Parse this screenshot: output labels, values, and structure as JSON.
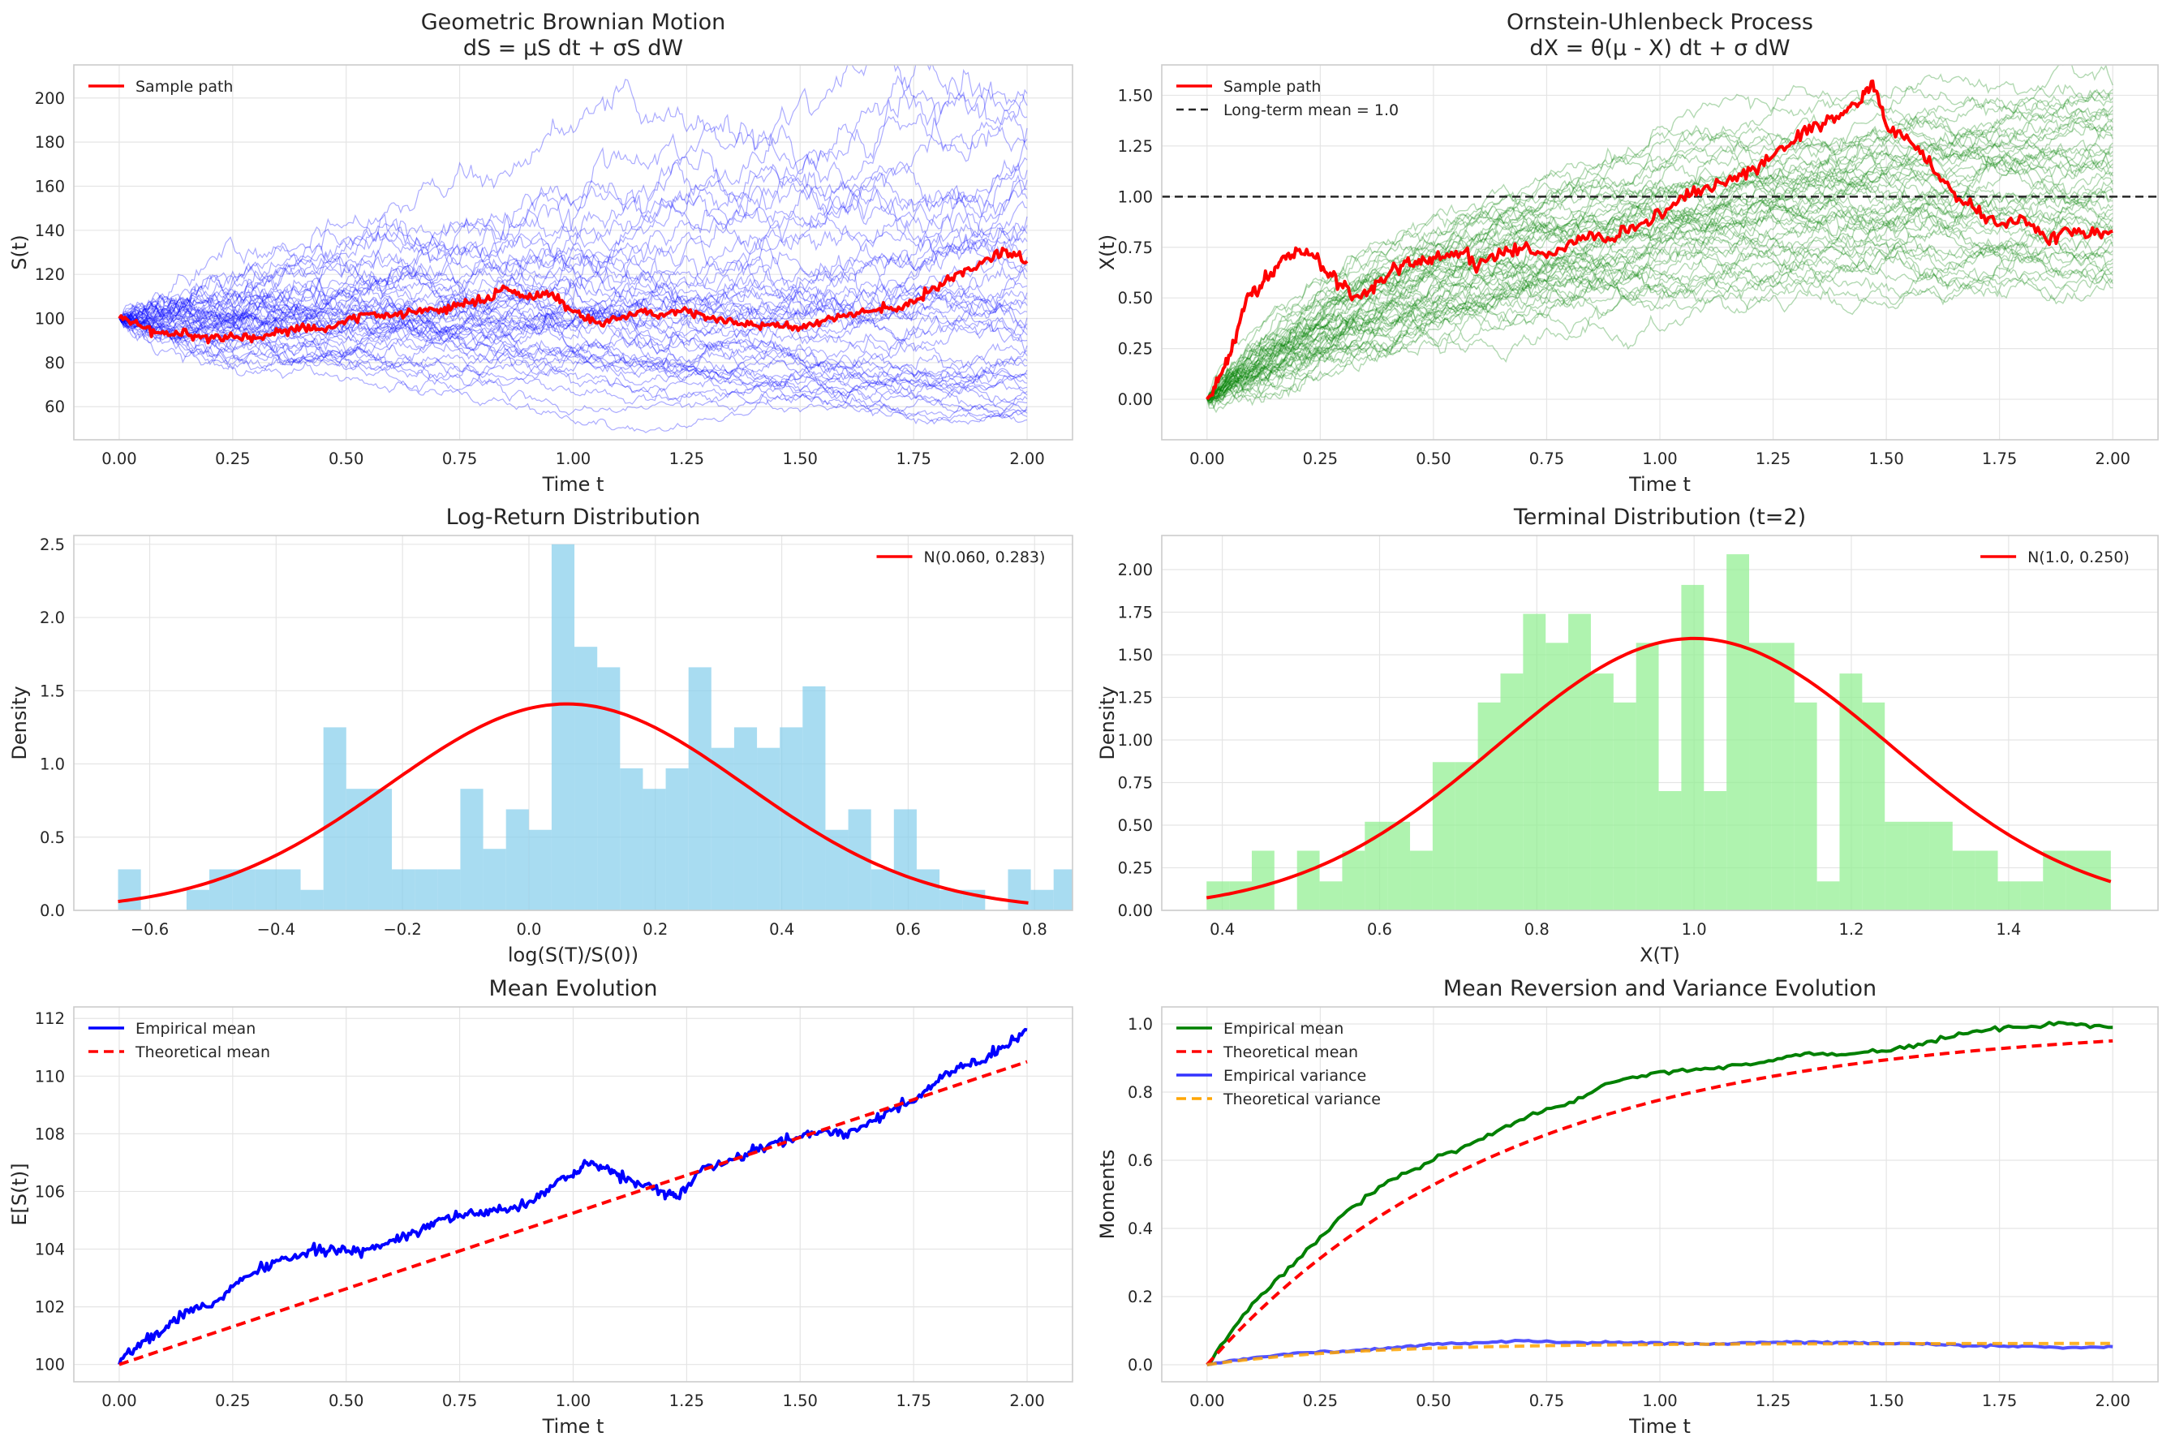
{
  "colors": {
    "gbm_paths": "#0000ff",
    "gbm_sample": "#ff0000",
    "ou_paths": "#008000",
    "ou_sample": "#ff0000",
    "mean_line": "#262626",
    "hist_log": "#87ceeb",
    "hist_terminal": "#90ee90",
    "pdf": "#ff0000",
    "emp_mean_gbm": "#0000ff",
    "theo_mean_gbm": "#ff0000",
    "emp_mean_ou": "#008000",
    "theo_mean_ou": "#ff0000",
    "emp_var_ou": "#3333ff",
    "theo_var_ou": "#ffa500",
    "grid": "#e5e5e5",
    "frame": "#cccccc"
  },
  "chart_data": [
    {
      "id": "gbm",
      "type": "line",
      "title": "Geometric Brownian Motion",
      "subtitle": "dS = μS dt + σS dW",
      "xlabel": "Time t",
      "ylabel": "S(t)",
      "xlim": [
        -0.1,
        2.1
      ],
      "ylim": [
        45,
        215
      ],
      "xticks": [
        "0.00",
        "0.25",
        "0.50",
        "0.75",
        "1.00",
        "1.25",
        "1.50",
        "1.75",
        "2.00"
      ],
      "yticks": [
        "60",
        "80",
        "100",
        "120",
        "140",
        "160",
        "180",
        "200"
      ],
      "grid": true,
      "legend": {
        "position": "top-left",
        "entries": [
          "Sample path"
        ]
      },
      "ensemble": {
        "count": 50,
        "t_end": 2.0,
        "start": 100,
        "final_low": 54,
        "final_high": 202,
        "max_reached": 207
      },
      "series": [
        {
          "name": "Sample path",
          "points": [
            [
              0.0,
              100
            ],
            [
              0.05,
              96
            ],
            [
              0.1,
              93
            ],
            [
              0.15,
              93
            ],
            [
              0.2,
              91
            ],
            [
              0.25,
              92
            ],
            [
              0.3,
              91
            ],
            [
              0.35,
              94
            ],
            [
              0.4,
              96
            ],
            [
              0.45,
              95
            ],
            [
              0.5,
              99
            ],
            [
              0.55,
              102
            ],
            [
              0.6,
              101
            ],
            [
              0.65,
              103
            ],
            [
              0.7,
              104
            ],
            [
              0.75,
              106
            ],
            [
              0.8,
              108
            ],
            [
              0.85,
              114
            ],
            [
              0.9,
              109
            ],
            [
              0.95,
              111
            ],
            [
              1.0,
              103
            ],
            [
              1.05,
              98
            ],
            [
              1.1,
              100
            ],
            [
              1.15,
              104
            ],
            [
              1.2,
              101
            ],
            [
              1.25,
              104
            ],
            [
              1.3,
              100
            ],
            [
              1.35,
              99
            ],
            [
              1.4,
              97
            ],
            [
              1.45,
              98
            ],
            [
              1.5,
              96
            ],
            [
              1.55,
              99
            ],
            [
              1.6,
              101
            ],
            [
              1.65,
              103
            ],
            [
              1.7,
              105
            ],
            [
              1.75,
              107
            ],
            [
              1.8,
              113
            ],
            [
              1.85,
              121
            ],
            [
              1.9,
              125
            ],
            [
              1.95,
              131
            ],
            [
              2.0,
              126
            ]
          ]
        }
      ]
    },
    {
      "id": "ou",
      "type": "line",
      "title": "Ornstein-Uhlenbeck Process",
      "subtitle": "dX = θ(μ - X) dt + σ dW",
      "xlabel": "Time t",
      "ylabel": "X(t)",
      "xlim": [
        -0.1,
        2.1
      ],
      "ylim": [
        -0.2,
        1.65
      ],
      "xticks": [
        "0.00",
        "0.25",
        "0.50",
        "0.75",
        "1.00",
        "1.25",
        "1.50",
        "1.75",
        "2.00"
      ],
      "yticks": [
        "0.00",
        "0.25",
        "0.50",
        "0.75",
        "1.00",
        "1.25",
        "1.50"
      ],
      "grid": true,
      "legend": {
        "position": "top-left",
        "entries": [
          "Sample path",
          "Long-term mean = 1.0"
        ]
      },
      "reference_line": {
        "y": 1.0,
        "label": "Long-term mean = 1.0",
        "style": "dashed"
      },
      "ensemble": {
        "count": 50,
        "t_end": 2.0,
        "start": 0.0,
        "theta": 1.5,
        "mu": 1.0,
        "final_low": 0.55,
        "final_high": 1.55
      },
      "series": [
        {
          "name": "Sample path",
          "points": [
            [
              0.0,
              0.0
            ],
            [
              0.03,
              0.12
            ],
            [
              0.06,
              0.28
            ],
            [
              0.09,
              0.52
            ],
            [
              0.12,
              0.55
            ],
            [
              0.15,
              0.65
            ],
            [
              0.18,
              0.72
            ],
            [
              0.22,
              0.74
            ],
            [
              0.26,
              0.63
            ],
            [
              0.3,
              0.55
            ],
            [
              0.34,
              0.5
            ],
            [
              0.38,
              0.58
            ],
            [
              0.42,
              0.64
            ],
            [
              0.46,
              0.68
            ],
            [
              0.5,
              0.7
            ],
            [
              0.55,
              0.73
            ],
            [
              0.6,
              0.66
            ],
            [
              0.65,
              0.72
            ],
            [
              0.7,
              0.75
            ],
            [
              0.75,
              0.7
            ],
            [
              0.8,
              0.78
            ],
            [
              0.85,
              0.82
            ],
            [
              0.9,
              0.78
            ],
            [
              0.95,
              0.85
            ],
            [
              1.0,
              0.92
            ],
            [
              1.05,
              1.0
            ],
            [
              1.1,
              1.05
            ],
            [
              1.15,
              1.08
            ],
            [
              1.2,
              1.13
            ],
            [
              1.25,
              1.2
            ],
            [
              1.3,
              1.28
            ],
            [
              1.35,
              1.35
            ],
            [
              1.4,
              1.41
            ],
            [
              1.44,
              1.46
            ],
            [
              1.47,
              1.57
            ],
            [
              1.5,
              1.35
            ],
            [
              1.55,
              1.28
            ],
            [
              1.6,
              1.15
            ],
            [
              1.65,
              1.02
            ],
            [
              1.7,
              0.92
            ],
            [
              1.75,
              0.86
            ],
            [
              1.8,
              0.9
            ],
            [
              1.85,
              0.8
            ],
            [
              1.9,
              0.84
            ],
            [
              1.95,
              0.81
            ],
            [
              2.0,
              0.83
            ]
          ]
        }
      ]
    },
    {
      "id": "logreturn",
      "type": "bar",
      "title": "Log-Return Distribution",
      "xlabel": "log(S(T)/S(0))",
      "ylabel": "Density",
      "xlim": [
        -0.72,
        0.86
      ],
      "ylim": [
        0,
        2.56
      ],
      "xticks": [
        "−0.6",
        "−0.4",
        "−0.2",
        "0.0",
        "0.2",
        "0.4",
        "0.6",
        "0.8"
      ],
      "yticks": [
        "0.0",
        "0.5",
        "1.0",
        "1.5",
        "2.0",
        "2.5"
      ],
      "grid": true,
      "legend": {
        "position": "top-right",
        "entries": [
          "N(0.060, 0.283)"
        ]
      },
      "bins": {
        "start": -0.65,
        "width": 0.0361,
        "heights": [
          0.28,
          0,
          0,
          0.14,
          0.28,
          0.28,
          0.28,
          0.28,
          0.14,
          1.25,
          0.83,
          0.83,
          0.28,
          0.28,
          0.28,
          0.83,
          0.42,
          0.69,
          0.55,
          2.5,
          1.8,
          1.66,
          0.97,
          0.83,
          0.97,
          1.66,
          1.11,
          1.25,
          1.11,
          1.25,
          1.53,
          0.55,
          0.69,
          0.28,
          0.69,
          0.28,
          0.14,
          0.14,
          0,
          0.28,
          0.14,
          0.28
        ]
      },
      "series": [
        {
          "name": "N(0.060, 0.283)",
          "distribution": "normal",
          "mean": 0.06,
          "std": 0.283,
          "x_range": [
            -0.65,
            0.79
          ]
        }
      ]
    },
    {
      "id": "terminal",
      "type": "bar",
      "title": "Terminal Distribution (t=2)",
      "xlabel": "X(T)",
      "ylabel": "Density",
      "xlim": [
        0.323,
        1.59
      ],
      "ylim": [
        0,
        2.2
      ],
      "xticks": [
        "0.4",
        "0.6",
        "0.8",
        "1.0",
        "1.2",
        "1.4"
      ],
      "yticks": [
        "0.00",
        "0.25",
        "0.50",
        "0.75",
        "1.00",
        "1.25",
        "1.50",
        "1.75",
        "2.00"
      ],
      "grid": true,
      "legend": {
        "position": "top-right",
        "entries": [
          "N(1.0, 0.250)"
        ]
      },
      "bins": {
        "start": 0.38,
        "width": 0.02875,
        "heights": [
          0.17,
          0.17,
          0.35,
          0,
          0.35,
          0.17,
          0.35,
          0.52,
          0.52,
          0.35,
          0.87,
          0.87,
          1.22,
          1.39,
          1.74,
          1.57,
          1.74,
          1.39,
          1.22,
          1.57,
          0.7,
          1.91,
          0.7,
          2.09,
          1.57,
          1.57,
          1.22,
          0.17,
          1.39,
          1.22,
          0.52,
          0.52,
          0.52,
          0.35,
          0.35,
          0.17,
          0.17,
          0.35,
          0.35,
          0.35
        ]
      },
      "series": [
        {
          "name": "N(1.0, 0.250)",
          "distribution": "normal",
          "mean": 1.0,
          "std": 0.25,
          "x_range": [
            0.38,
            1.53
          ]
        }
      ]
    },
    {
      "id": "meanevo",
      "type": "line",
      "title": "Mean Evolution",
      "xlabel": "Time t",
      "ylabel": "E[S(t)]",
      "xlim": [
        -0.1,
        2.1
      ],
      "ylim": [
        99.4,
        112.4
      ],
      "xticks": [
        "0.00",
        "0.25",
        "0.50",
        "0.75",
        "1.00",
        "1.25",
        "1.50",
        "1.75",
        "2.00"
      ],
      "yticks": [
        "100",
        "102",
        "104",
        "106",
        "108",
        "110",
        "112"
      ],
      "grid": true,
      "legend": {
        "position": "top-left",
        "entries": [
          "Empirical mean",
          "Theoretical mean"
        ]
      },
      "series": [
        {
          "name": "Empirical mean",
          "points": [
            [
              0.0,
              100.0
            ],
            [
              0.05,
              100.8
            ],
            [
              0.1,
              101.2
            ],
            [
              0.15,
              101.9
            ],
            [
              0.2,
              102.0
            ],
            [
              0.25,
              102.7
            ],
            [
              0.3,
              103.2
            ],
            [
              0.35,
              103.6
            ],
            [
              0.4,
              103.8
            ],
            [
              0.45,
              104.0
            ],
            [
              0.5,
              103.9
            ],
            [
              0.55,
              104.0
            ],
            [
              0.6,
              104.3
            ],
            [
              0.65,
              104.6
            ],
            [
              0.7,
              105.0
            ],
            [
              0.75,
              105.2
            ],
            [
              0.8,
              105.2
            ],
            [
              0.85,
              105.4
            ],
            [
              0.9,
              105.6
            ],
            [
              0.95,
              106.2
            ],
            [
              1.0,
              106.5
            ],
            [
              1.03,
              107.0
            ],
            [
              1.07,
              106.8
            ],
            [
              1.1,
              106.6
            ],
            [
              1.15,
              106.2
            ],
            [
              1.2,
              106.0
            ],
            [
              1.23,
              105.8
            ],
            [
              1.28,
              106.7
            ],
            [
              1.35,
              107.1
            ],
            [
              1.4,
              107.4
            ],
            [
              1.45,
              107.7
            ],
            [
              1.5,
              107.9
            ],
            [
              1.55,
              108.1
            ],
            [
              1.6,
              108.0
            ],
            [
              1.65,
              108.4
            ],
            [
              1.7,
              108.8
            ],
            [
              1.75,
              109.1
            ],
            [
              1.8,
              109.8
            ],
            [
              1.85,
              110.3
            ],
            [
              1.9,
              110.5
            ],
            [
              1.95,
              111.0
            ],
            [
              2.0,
              111.6
            ]
          ]
        },
        {
          "name": "Theoretical mean",
          "style": "dashed",
          "points": [
            [
              0.0,
              100.0
            ],
            [
              2.0,
              110.5
            ]
          ]
        }
      ]
    },
    {
      "id": "moments",
      "type": "line",
      "title": "Mean Reversion and Variance Evolution",
      "xlabel": "Time t",
      "ylabel": "Moments",
      "xlim": [
        -0.1,
        2.1
      ],
      "ylim": [
        -0.05,
        1.05
      ],
      "xticks": [
        "0.00",
        "0.25",
        "0.50",
        "0.75",
        "1.00",
        "1.25",
        "1.50",
        "1.75",
        "2.00"
      ],
      "yticks": [
        "0.0",
        "0.2",
        "0.4",
        "0.6",
        "0.8",
        "1.0"
      ],
      "grid": true,
      "legend": {
        "position": "top-left",
        "entries": [
          "Empirical mean",
          "Theoretical mean",
          "Empirical variance",
          "Theoretical variance"
        ]
      },
      "series": [
        {
          "name": "Empirical mean",
          "points": [
            [
              0.0,
              0.0
            ],
            [
              0.1,
              0.18
            ],
            [
              0.2,
              0.31
            ],
            [
              0.3,
              0.44
            ],
            [
              0.4,
              0.54
            ],
            [
              0.5,
              0.6
            ],
            [
              0.6,
              0.66
            ],
            [
              0.7,
              0.72
            ],
            [
              0.8,
              0.77
            ],
            [
              0.9,
              0.83
            ],
            [
              1.0,
              0.86
            ],
            [
              1.1,
              0.87
            ],
            [
              1.2,
              0.88
            ],
            [
              1.3,
              0.91
            ],
            [
              1.4,
              0.91
            ],
            [
              1.5,
              0.92
            ],
            [
              1.6,
              0.95
            ],
            [
              1.7,
              0.98
            ],
            [
              1.8,
              0.99
            ],
            [
              1.9,
              1.0
            ],
            [
              2.0,
              0.99
            ]
          ]
        },
        {
          "name": "Theoretical mean",
          "style": "dashed",
          "formula": "1 - exp(-1.5 t)"
        },
        {
          "name": "Empirical variance",
          "points": [
            [
              0.0,
              0.0
            ],
            [
              0.1,
              0.02
            ],
            [
              0.2,
              0.035
            ],
            [
              0.3,
              0.04
            ],
            [
              0.4,
              0.05
            ],
            [
              0.5,
              0.06
            ],
            [
              0.6,
              0.065
            ],
            [
              0.7,
              0.07
            ],
            [
              0.8,
              0.065
            ],
            [
              0.9,
              0.065
            ],
            [
              1.0,
              0.065
            ],
            [
              1.1,
              0.06
            ],
            [
              1.2,
              0.065
            ],
            [
              1.3,
              0.068
            ],
            [
              1.4,
              0.065
            ],
            [
              1.5,
              0.062
            ],
            [
              1.6,
              0.06
            ],
            [
              1.7,
              0.055
            ],
            [
              1.8,
              0.055
            ],
            [
              1.9,
              0.05
            ],
            [
              2.0,
              0.053
            ]
          ]
        },
        {
          "name": "Theoretical variance",
          "style": "dashed",
          "formula": "0.0625 (1 - exp(-3 t))"
        }
      ]
    }
  ]
}
